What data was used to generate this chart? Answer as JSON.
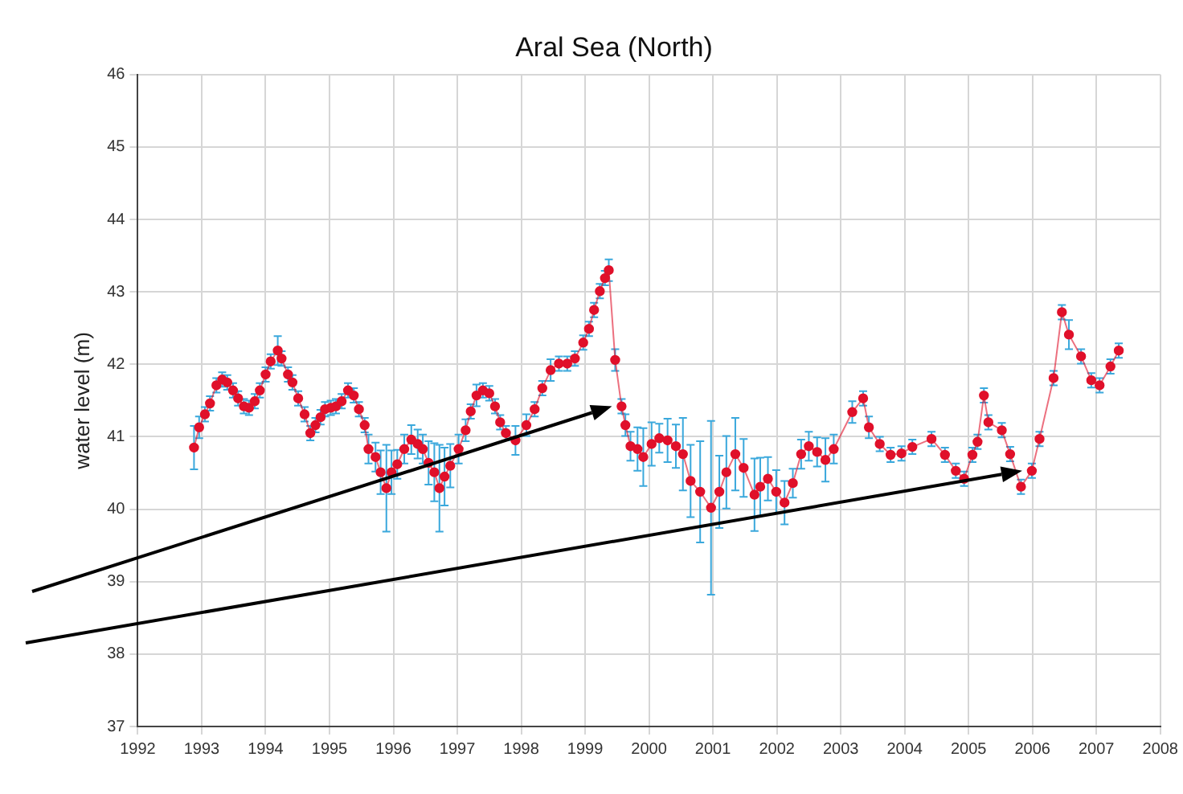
{
  "chart_data": {
    "type": "line",
    "title": "Aral Sea (North)",
    "ylabel": "water level (m)",
    "xlim": [
      1992,
      2008
    ],
    "xticks": [
      1992,
      1993,
      1994,
      1995,
      1996,
      1997,
      1998,
      1999,
      2000,
      2001,
      2002,
      2003,
      2004,
      2005,
      2006,
      2007,
      2008
    ],
    "ylim": [
      37,
      46
    ],
    "yticks": [
      37,
      38,
      39,
      40,
      41,
      42,
      43,
      44,
      45,
      46
    ],
    "grid": true,
    "legend": false,
    "marker": "circle",
    "line_style": "solid",
    "series": [
      {
        "color": "#e0102a",
        "x": [
          1992.88,
          1992.96,
          1993.05,
          1993.13,
          1993.23,
          1993.32,
          1993.4,
          1993.49,
          1993.57,
          1993.66,
          1993.74,
          1993.83,
          1993.91,
          1994.0,
          1994.08,
          1994.19,
          1994.25,
          1994.35,
          1994.42,
          1994.51,
          1994.61,
          1994.7,
          1994.78,
          1994.86,
          1994.93,
          1995.02,
          1995.1,
          1995.19,
          1995.29,
          1995.38,
          1995.46,
          1995.55,
          1995.61,
          1995.72,
          1995.8,
          1995.89,
          1995.97,
          1996.06,
          1996.17,
          1996.28,
          1996.38,
          1996.46,
          1996.55,
          1996.64,
          1996.72,
          1996.8,
          1996.89,
          1997.02,
          1997.13,
          1997.21,
          1997.3,
          1997.4,
          1997.5,
          1997.59,
          1997.67,
          1997.76,
          1997.91,
          1998.08,
          1998.21,
          1998.33,
          1998.46,
          1998.59,
          1998.72,
          1998.84,
          1998.97,
          1999.06,
          1999.14,
          1999.23,
          1999.31,
          1999.37,
          1999.47,
          1999.57,
          1999.63,
          1999.71,
          1999.82,
          1999.91,
          2000.04,
          2000.16,
          2000.29,
          2000.42,
          2000.53,
          2000.65,
          2000.8,
          2000.97,
          2001.1,
          2001.21,
          2001.35,
          2001.48,
          2001.65,
          2001.74,
          2001.86,
          2001.99,
          2002.12,
          2002.25,
          2002.38,
          2002.5,
          2002.63,
          2002.76,
          2002.89,
          2003.18,
          2003.35,
          2003.44,
          2003.61,
          2003.78,
          2003.95,
          2004.12,
          2004.42,
          2004.63,
          2004.8,
          2004.93,
          2005.06,
          2005.14,
          2005.24,
          2005.31,
          2005.52,
          2005.65,
          2005.82,
          2005.99,
          2006.11,
          2006.33,
          2006.46,
          2006.57,
          2006.76,
          2006.92,
          2007.05,
          2007.22,
          2007.35
        ],
        "values": [
          40.85,
          41.13,
          41.31,
          41.46,
          41.71,
          41.79,
          41.75,
          41.64,
          41.53,
          41.42,
          41.4,
          41.49,
          41.64,
          41.86,
          42.04,
          42.19,
          42.08,
          41.86,
          41.75,
          41.53,
          41.31,
          41.05,
          41.16,
          41.27,
          41.38,
          41.4,
          41.42,
          41.49,
          41.64,
          41.57,
          41.38,
          41.16,
          40.83,
          40.72,
          40.51,
          40.29,
          40.51,
          40.62,
          40.83,
          40.96,
          40.9,
          40.83,
          40.64,
          40.51,
          40.29,
          40.45,
          40.6,
          40.83,
          41.09,
          41.35,
          41.57,
          41.64,
          41.6,
          41.42,
          41.2,
          41.05,
          40.95,
          41.16,
          41.38,
          41.67,
          41.92,
          42.01,
          42.01,
          42.08,
          42.3,
          42.49,
          42.75,
          43.01,
          43.19,
          43.3,
          42.06,
          41.42,
          41.16,
          40.87,
          40.83,
          40.72,
          40.9,
          40.98,
          40.95,
          40.87,
          40.76,
          40.39,
          40.24,
          40.02,
          40.24,
          40.51,
          40.76,
          40.57,
          40.2,
          40.31,
          40.42,
          40.24,
          40.09,
          40.36,
          40.76,
          40.87,
          40.79,
          40.68,
          40.83,
          41.34,
          41.53,
          41.13,
          40.9,
          40.75,
          40.77,
          40.86,
          40.97,
          40.75,
          40.53,
          40.42,
          40.75,
          40.93,
          41.57,
          41.2,
          41.09,
          40.76,
          40.31,
          40.53,
          40.97,
          41.81,
          42.72,
          42.41,
          42.11,
          41.78,
          41.71,
          41.97,
          42.19
        ],
        "errors": [
          0.3,
          0.15,
          0.1,
          0.1,
          0.1,
          0.1,
          0.1,
          0.1,
          0.1,
          0.1,
          0.1,
          0.1,
          0.1,
          0.1,
          0.1,
          0.2,
          0.1,
          0.1,
          0.1,
          0.1,
          0.1,
          0.1,
          0.1,
          0.1,
          0.1,
          0.1,
          0.1,
          0.1,
          0.1,
          0.1,
          0.1,
          0.1,
          0.2,
          0.2,
          0.3,
          0.6,
          0.3,
          0.2,
          0.2,
          0.2,
          0.2,
          0.2,
          0.3,
          0.4,
          0.6,
          0.4,
          0.3,
          0.2,
          0.15,
          0.1,
          0.15,
          0.1,
          0.1,
          0.1,
          0.1,
          0.1,
          0.2,
          0.15,
          0.1,
          0.1,
          0.15,
          0.1,
          0.1,
          0.1,
          0.1,
          0.1,
          0.1,
          0.1,
          0.1,
          0.15,
          0.15,
          0.1,
          0.15,
          0.2,
          0.3,
          0.4,
          0.3,
          0.2,
          0.3,
          0.3,
          0.5,
          0.5,
          0.7,
          1.2,
          0.5,
          0.5,
          0.5,
          0.4,
          0.5,
          0.4,
          0.3,
          0.3,
          0.3,
          0.2,
          0.2,
          0.2,
          0.2,
          0.3,
          0.2,
          0.15,
          0.1,
          0.15,
          0.1,
          0.1,
          0.1,
          0.1,
          0.1,
          0.1,
          0.1,
          0.1,
          0.1,
          0.1,
          0.1,
          0.1,
          0.1,
          0.1,
          0.1,
          0.1,
          0.1,
          0.1,
          0.1,
          0.2,
          0.1,
          0.1,
          0.1,
          0.1,
          0.1
        ]
      }
    ]
  }
}
